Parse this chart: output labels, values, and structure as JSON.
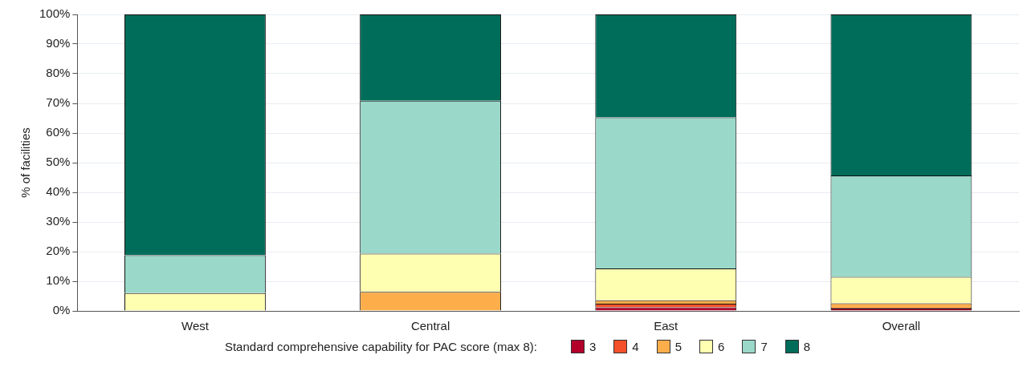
{
  "chart_data": {
    "type": "bar",
    "stacked": true,
    "ylabel": "% of facilities",
    "legend_title": "Standard comprehensive capability for PAC score (max 8):",
    "legend": "bottom",
    "grid": "y",
    "categories": [
      "West",
      "Central",
      "East",
      "Overall"
    ],
    "ylim": [
      0,
      100
    ],
    "yticks": [
      {
        "value": 0,
        "label": "0%"
      },
      {
        "value": 10,
        "label": "10%"
      },
      {
        "value": 20,
        "label": "20%"
      },
      {
        "value": 30,
        "label": "30%"
      },
      {
        "value": 40,
        "label": "40%"
      },
      {
        "value": 50,
        "label": "50%"
      },
      {
        "value": 60,
        "label": "60%"
      },
      {
        "value": 70,
        "label": "70%"
      },
      {
        "value": 80,
        "label": "80%"
      },
      {
        "value": 90,
        "label": "90%"
      },
      {
        "value": 100,
        "label": "100%"
      }
    ],
    "series": [
      {
        "name": "3",
        "color": "#b2002b",
        "values": [
          0,
          0,
          1.2,
          0.8
        ]
      },
      {
        "name": "4",
        "color": "#f4502a",
        "values": [
          0,
          0,
          1.2,
          0.3
        ]
      },
      {
        "name": "5",
        "color": "#fdae4b",
        "values": [
          0,
          6.4,
          1.2,
          1.5
        ]
      },
      {
        "name": "6",
        "color": "#ffffb2",
        "values": [
          6,
          12.9,
          10.7,
          8.9
        ]
      },
      {
        "name": "7",
        "color": "#9ad8c9",
        "values": [
          12.8,
          51.6,
          51,
          34.2
        ]
      },
      {
        "name": "8",
        "color": "#006d5b",
        "values": [
          81.2,
          29.1,
          34.7,
          54.3
        ]
      }
    ]
  }
}
